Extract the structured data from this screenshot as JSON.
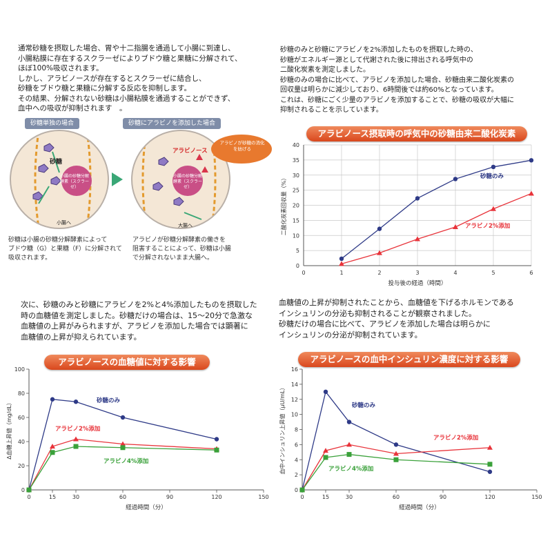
{
  "intro_text": [
    "通常砂糖を摂取した場合、胃や十二指腸を通過して小腸に到達し、",
    "小腸粘膜に存在するスクラーゼによりブドウ糖と果糖に分解されて、",
    "ほぼ100%吸収されます。",
    "しかし、アラビノースが存在するとスクラーゼに結合し、",
    "砂糖をブドウ糖と果糖に分解する反応を抑制します。",
    "その結果、分解されない砂糖は小腸粘膜を通過することができず、",
    "血中への吸収が抑制されます　。"
  ],
  "breath_text": [
    "砂糖のみと砂糖にアラビノを2%添加したものを摂取した時の、",
    "砂糖がエネルギー源として代謝された後に排出される呼気中の",
    "二酸化炭素を測定しました。",
    "砂糖のみの場合に比べて、アラビノを添加した場合、砂糖由来二酸化炭素の",
    "回収量は明らかに減少しており、6時間後では約60%となっています。",
    "これは、砂糖にごく少量のアラビノを添加することで、砂糖の吸収が大幅に",
    "抑制されることを示しています。"
  ],
  "glucose_text": [
    "次に、砂糖のみと砂糖にアラビノを2%と4%添加したものを摂取した",
    "時の血糖値を測定しました。砂糖だけの場合は、15～20分で急激な",
    "血糖値の上昇がみられますが、アラビノを添加した場合では顕著に",
    "血糖値の上昇が抑えられています。"
  ],
  "insulin_text": [
    "血糖値の上昇が抑制されたことから、血糖値を下げるホルモンである",
    "インシュリンの分泌も抑制されることが観察されました。",
    "砂糖だけの場合に比べて、アラビノを添加した場合は明らかに",
    "インシュリンの分泌が抑制されています。"
  ],
  "diagram": {
    "left_tag": "砂糖単独の場合",
    "right_tag": "砂糖にアラビノを添加した場合",
    "sugar_label": "砂糖",
    "enzyme_label": "小腸の砂糖分解酵素（スクラーゼ）",
    "arabinose_label": "アラビノース",
    "bubble_text": "アラビノが砂糖の消化を妨げる",
    "large_intestine_label": "大腸へ",
    "small_intestine_label": "小腸へ",
    "left_caption": [
      "砂糖は小腸の砂糖分解酵素によって",
      "ブドウ糖（G）と果糖（F）に分解されて",
      "吸収されます。"
    ],
    "right_caption": [
      "アラビノが砂糖分解酵素の働きを",
      "阻害することによって、砂糖は小腸",
      "で分解されないまま大腸へ。"
    ],
    "colors": {
      "circle_bg": "#f4e7d6",
      "enzyme": "#c94f86",
      "arrow": "#3aa776",
      "bubble": "#e8792e"
    }
  },
  "charts": {
    "breath": {
      "title": "アラビノース摂取時の呼気中の砂糖由来二酸化炭素",
      "ylabel": "二酸化炭素回収量（%）",
      "xlabel": "投与後の経過（時間）"
    },
    "glucose": {
      "title": "アラビノースの血糖値に対する影響",
      "ylabel": "Δ血糖上昇値（mg/dL）",
      "xlabel": "経過時間（分）"
    },
    "insulin": {
      "title": "アラビノースの血中インシュリン濃度に対する影響",
      "ylabel": "血中インシュリン上昇値（μU/mL）",
      "xlabel": "経過時間（分）"
    }
  },
  "chart_data": [
    {
      "type": "line",
      "title": "アラビノース摂取時の呼気中の砂糖由来二酸化炭素",
      "xlabel": "投与後の経過（時間）",
      "ylabel": "二酸化炭素回収量（%）",
      "xlim": [
        0,
        6
      ],
      "ylim": [
        0,
        40
      ],
      "xticks": [
        0,
        1,
        2,
        3,
        4,
        5,
        6
      ],
      "yticks": [
        0,
        5,
        10,
        15,
        20,
        25,
        30,
        35,
        40
      ],
      "grid": true,
      "series": [
        {
          "name": "砂糖のみ",
          "color": "#2e3a87",
          "marker": "circle",
          "x": [
            1,
            2,
            3,
            4,
            5,
            6
          ],
          "y": [
            2.3,
            12.2,
            22.3,
            28.7,
            32.7,
            34.9
          ]
        },
        {
          "name": "アラビノ2%添加",
          "color": "#e8333a",
          "marker": "triangle",
          "x": [
            1,
            2,
            3,
            4,
            5,
            6
          ],
          "y": [
            0.6,
            4.2,
            8.8,
            12.8,
            18.8,
            23.9
          ]
        }
      ]
    },
    {
      "type": "line",
      "title": "アラビノースの血糖値に対する影響",
      "xlabel": "経過時間（分）",
      "ylabel": "Δ血糖上昇値（mg/dL）",
      "xlim": [
        0,
        150
      ],
      "ylim": [
        0,
        100
      ],
      "xticks": [
        0,
        15,
        30,
        60,
        90,
        120,
        150
      ],
      "yticks": [
        0,
        20,
        40,
        60,
        80,
        100
      ],
      "grid": false,
      "series": [
        {
          "name": "砂糖のみ",
          "color": "#2e3a87",
          "marker": "circle",
          "x": [
            0,
            15,
            30,
            60,
            120
          ],
          "y": [
            0,
            75,
            73,
            60,
            42
          ]
        },
        {
          "name": "アラビノ2%添加",
          "color": "#e8333a",
          "marker": "triangle",
          "x": [
            0,
            15,
            30,
            60,
            120
          ],
          "y": [
            0,
            36,
            42,
            38,
            34
          ]
        },
        {
          "name": "アラビノ4%添加",
          "color": "#3aa13a",
          "marker": "square",
          "x": [
            0,
            15,
            30,
            60,
            120
          ],
          "y": [
            0,
            31,
            36,
            35,
            33
          ]
        }
      ]
    },
    {
      "type": "line",
      "title": "アラビノースの血中インシュリン濃度に対する影響",
      "xlabel": "経過時間（分）",
      "ylabel": "血中インシュリン上昇値（μU/mL）",
      "xlim": [
        0,
        150
      ],
      "ylim": [
        0,
        16
      ],
      "xticks": [
        0,
        15,
        30,
        60,
        90,
        120,
        150
      ],
      "yticks": [
        0,
        2,
        4,
        6,
        8,
        10,
        12,
        14,
        16
      ],
      "grid": false,
      "series": [
        {
          "name": "砂糖のみ",
          "color": "#2e3a87",
          "marker": "circle",
          "x": [
            0,
            15,
            30,
            60,
            120
          ],
          "y": [
            0,
            13,
            9,
            6,
            2.4
          ]
        },
        {
          "name": "アラビノ2%添加",
          "color": "#e8333a",
          "marker": "triangle",
          "x": [
            0,
            15,
            30,
            60,
            120
          ],
          "y": [
            0,
            5.2,
            6,
            4.8,
            5.6
          ]
        },
        {
          "name": "アラビノ4%添加",
          "color": "#3aa13a",
          "marker": "square",
          "x": [
            0,
            15,
            30,
            60,
            120
          ],
          "y": [
            0,
            4.3,
            4.7,
            4,
            3.4
          ]
        }
      ]
    }
  ]
}
